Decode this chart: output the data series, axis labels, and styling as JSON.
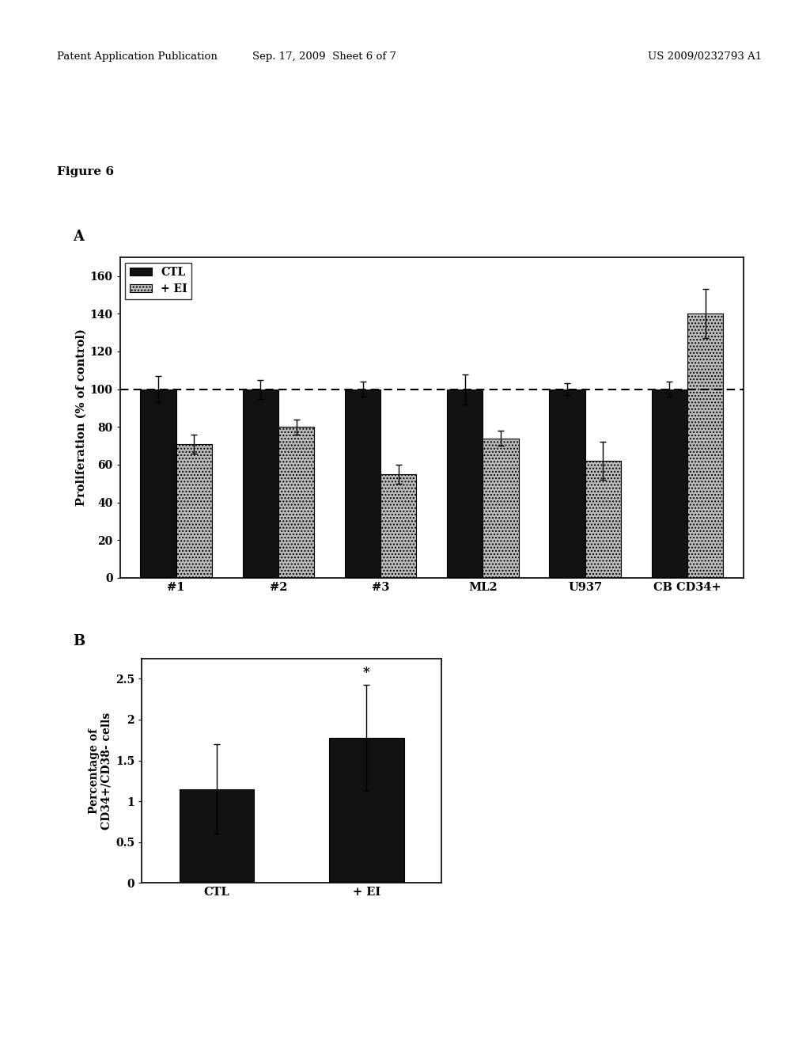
{
  "fig_label": "Figure 6",
  "panel_A": {
    "label": "A",
    "categories": [
      "#1",
      "#2",
      "#3",
      "ML2",
      "U937",
      "CB CD34+"
    ],
    "ctl_values": [
      100,
      100,
      100,
      100,
      100,
      100
    ],
    "ei_values": [
      71,
      80,
      55,
      74,
      62,
      140
    ],
    "ctl_errors": [
      7,
      5,
      4,
      8,
      3,
      4
    ],
    "ei_errors": [
      5,
      4,
      5,
      4,
      10,
      13
    ],
    "ylabel": "Proliferation (% of control)",
    "ylim": [
      0,
      170
    ],
    "yticks": [
      0,
      20,
      40,
      60,
      80,
      100,
      120,
      140,
      160
    ],
    "dashed_line_y": 100,
    "legend_labels": [
      "CTL",
      "+ EI"
    ],
    "ctl_color": "#111111",
    "ei_color": "#bbbbbb",
    "bar_width": 0.35
  },
  "panel_B": {
    "label": "B",
    "categories": [
      "CTL",
      "+ EI"
    ],
    "values": [
      1.15,
      1.78
    ],
    "errors": [
      0.55,
      0.65
    ],
    "ylabel": "Percentage of\nCD34+/CD38- cells",
    "ylim": [
      0,
      2.75
    ],
    "yticks": [
      0,
      0.5,
      1.0,
      1.5,
      2.0,
      2.5
    ],
    "bar_color": "#111111",
    "bar_width": 0.5,
    "star_annotation": "*"
  },
  "header_left": "Patent Application Publication",
  "header_mid": "Sep. 17, 2009  Sheet 6 of 7",
  "header_right": "US 2009/0232793 A1",
  "background_color": "#ffffff",
  "text_color": "#000000"
}
